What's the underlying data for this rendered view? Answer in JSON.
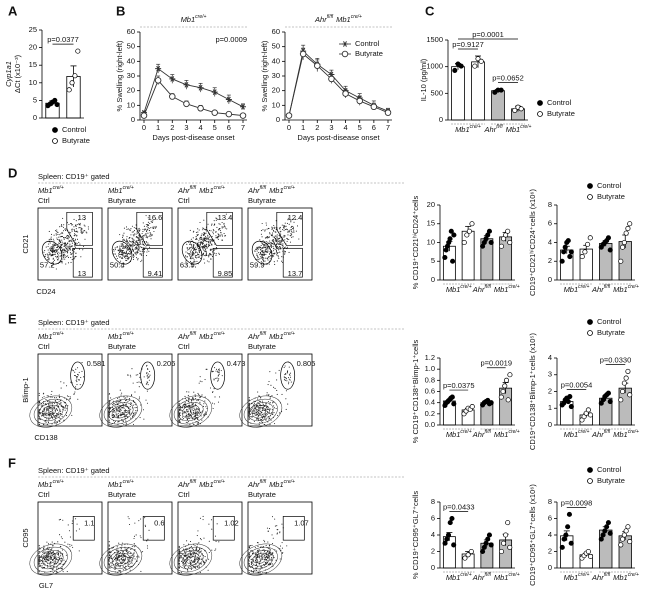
{
  "panel_letters": [
    "A",
    "B",
    "C",
    "D",
    "E",
    "F"
  ],
  "chart_data": [
    {
      "type": "bar",
      "ylabel": [
        "Cyp1a1",
        "ΔCt (x10⁻³)"
      ],
      "ylim": [
        0,
        25
      ],
      "yticks": [
        0,
        5,
        10,
        15,
        20,
        25
      ],
      "values": [
        4.2,
        11.8
      ],
      "errors": [
        0.7,
        3.0
      ],
      "points": [
        [
          3.5,
          4.0,
          4.5,
          5.0,
          3.8
        ],
        [
          8,
          10,
          12,
          19
        ]
      ],
      "bar_colors": [
        "#ffffff",
        "#ffffff"
      ],
      "point_colors": [
        "#000000",
        "#ffffff"
      ],
      "p_values": [
        {
          "text": "p=0.0377",
          "bars": [
            0,
            1
          ]
        }
      ],
      "legend": [
        "Control",
        "Butyrate"
      ],
      "legend_colors": [
        "#000000",
        "#ffffff"
      ]
    },
    {
      "type": "line",
      "title": [
        [
          "Mb1",
          "cre/+"
        ]
      ],
      "xlabel": "Days post-disease onset",
      "ylabel": "% Swelling (right-left)",
      "x": [
        0,
        1,
        2,
        3,
        4,
        5,
        6,
        7
      ],
      "xlim": [
        0,
        7
      ],
      "xticks": [
        0,
        1,
        2,
        3,
        4,
        5,
        6,
        7
      ],
      "ylim": [
        0,
        60
      ],
      "yticks": [
        0,
        10,
        20,
        30,
        40,
        50,
        60
      ],
      "annotation": "p=0.0009",
      "series": [
        {
          "color": "#333333",
          "marker": "star",
          "values": [
            5,
            35,
            28,
            24,
            22,
            19,
            14,
            9
          ],
          "errors": [
            1,
            3,
            3,
            3,
            3,
            3,
            3,
            2
          ]
        },
        {
          "color": "#333333",
          "marker": "circle",
          "values": [
            3,
            27,
            16,
            11,
            8,
            5,
            4,
            3
          ],
          "errors": [
            1,
            3,
            2,
            2,
            2,
            1,
            1,
            1
          ]
        }
      ]
    },
    {
      "type": "line",
      "title": [
        [
          "Ahr",
          "fl/fl"
        ],
        [
          "Mb1",
          "cre/+"
        ]
      ],
      "xlabel": "Days post-disease onset",
      "ylabel": "% Swelling (right-left)",
      "x": [
        0,
        1,
        2,
        3,
        4,
        5,
        6,
        7
      ],
      "xlim": [
        0,
        7
      ],
      "xticks": [
        0,
        1,
        2,
        3,
        4,
        5,
        6,
        7
      ],
      "ylim": [
        0,
        60
      ],
      "yticks": [
        0,
        10,
        20,
        30,
        40,
        50,
        60
      ],
      "legend": true,
      "series": [
        {
          "name": "Control",
          "color": "#333333",
          "marker": "star",
          "values": [
            3,
            47,
            38,
            31,
            20,
            15,
            10,
            6
          ],
          "errors": [
            1,
            4,
            4,
            3,
            3,
            3,
            3,
            2
          ]
        },
        {
          "name": "Butyrate",
          "color": "#333333",
          "marker": "circle",
          "values": [
            3,
            45,
            37,
            28,
            18,
            13,
            9,
            5
          ],
          "errors": [
            1,
            4,
            4,
            3,
            3,
            3,
            2,
            2
          ]
        }
      ]
    },
    {
      "type": "bar",
      "ylabel": "IL-10 (pg/ml)",
      "ylim": [
        0,
        1500
      ],
      "yticks": [
        0,
        500,
        1000,
        1500
      ],
      "values": [
        1000,
        1090,
        550,
        210
      ],
      "errors": [
        60,
        110,
        20,
        50
      ],
      "points": [
        [
          930,
          1050,
          1010
        ],
        [
          1010,
          1150,
          1100
        ],
        [
          520,
          560,
          560
        ],
        [
          180,
          240,
          210
        ]
      ],
      "bar_colors": [
        "#ffffff",
        "#ffffff",
        "#bbbbbb",
        "#bbbbbb"
      ],
      "point_colors": [
        "#000000",
        "#ffffff",
        "#000000",
        "#ffffff"
      ],
      "groups": [
        [
          [
            "Mb1",
            "cre/+"
          ]
        ],
        [
          [
            "Ahr",
            "fl/fl"
          ],
          [
            "Mb1",
            "cre/+"
          ]
        ]
      ],
      "p_values": [
        {
          "text": "p=0.9127",
          "bars": [
            0,
            1
          ]
        },
        {
          "text": "p=0.0652",
          "bars": [
            2,
            3
          ]
        },
        {
          "text": "p=0.0001",
          "bars": [
            0,
            3
          ]
        }
      ],
      "legend": [
        "Control",
        "Butyrate"
      ],
      "legend_colors": [
        "#000000",
        "#ffffff"
      ]
    },
    {
      "type": "bar",
      "ylabel": "% CD19⁺CD21ʰⁱCD24⁺cells",
      "ylim": [
        0,
        20
      ],
      "yticks": [
        0,
        5,
        10,
        15,
        20
      ],
      "values": [
        9,
        13,
        11,
        11.5
      ],
      "errors": [
        1.3,
        1.3,
        0.8,
        1.2
      ],
      "points": [
        [
          6,
          8,
          9,
          10,
          11,
          13,
          5,
          12
        ],
        [
          10,
          12,
          13,
          15
        ],
        [
          9,
          10,
          11,
          12,
          13,
          10
        ],
        [
          9,
          11,
          12,
          13,
          10
        ]
      ],
      "bar_colors": [
        "#ffffff",
        "#ffffff",
        "#bbbbbb",
        "#bbbbbb"
      ],
      "point_colors": [
        "#000000",
        "#ffffff",
        "#000000",
        "#ffffff"
      ],
      "groups": [
        [
          [
            "Mb1",
            "cre/+"
          ]
        ],
        [
          [
            "Ahr",
            "fl/fl"
          ],
          [
            "Mb1",
            "cre/+"
          ]
        ]
      ]
    },
    {
      "type": "bar",
      "ylabel": "CD19⁺CD21ʰⁱCD24⁺cells (x10⁶)",
      "ylim": [
        0,
        8
      ],
      "yticks": [
        0,
        2,
        4,
        6,
        8
      ],
      "values": [
        3.2,
        3.3,
        3.9,
        4.1
      ],
      "errors": [
        0.4,
        0.4,
        0.3,
        0.7
      ],
      "points": [
        [
          2,
          3,
          3.5,
          4,
          4.2,
          2.5,
          3
        ],
        [
          2.5,
          3,
          3.8,
          4.5
        ],
        [
          3.5,
          3.8,
          4,
          4.2,
          4.5,
          3.2
        ],
        [
          2,
          3.5,
          4,
          5,
          5.5,
          6
        ]
      ],
      "bar_colors": [
        "#ffffff",
        "#ffffff",
        "#bbbbbb",
        "#bbbbbb"
      ],
      "point_colors": [
        "#000000",
        "#ffffff",
        "#000000",
        "#ffffff"
      ],
      "groups": [
        [
          [
            "Mb1",
            "cre/+"
          ]
        ],
        [
          [
            "Ahr",
            "fl/fl"
          ],
          [
            "Mb1",
            "cre/+"
          ]
        ]
      ],
      "legend": [
        "Control",
        "Butyrate"
      ],
      "legend_colors": [
        "#000000",
        "#ffffff"
      ]
    },
    {
      "type": "bar",
      "ylabel": "% CD19⁺CD138⁺Blimp-1⁺cells",
      "ylim": [
        0,
        1.2
      ],
      "yticks": [
        {
          "value": 0,
          "label": "0.0"
        },
        0.2,
        0.4,
        0.6,
        0.8,
        {
          "value": 1,
          "label": "1.0"
        },
        1.2
      ],
      "values": [
        0.43,
        0.27,
        0.4,
        0.66
      ],
      "errors": [
        0.03,
        0.03,
        0.02,
        0.1
      ],
      "points": [
        [
          0.35,
          0.4,
          0.42,
          0.45,
          0.48,
          0.5,
          0.38
        ],
        [
          0.2,
          0.25,
          0.3,
          0.28,
          0.33
        ],
        [
          0.36,
          0.4,
          0.42,
          0.44,
          0.38,
          0.4
        ],
        [
          0.5,
          0.6,
          0.7,
          0.8,
          0.45,
          0.9
        ]
      ],
      "bar_colors": [
        "#ffffff",
        "#ffffff",
        "#bbbbbb",
        "#bbbbbb"
      ],
      "point_colors": [
        "#000000",
        "#ffffff",
        "#000000",
        "#ffffff"
      ],
      "groups": [
        [
          [
            "Mb1",
            "cre/+"
          ]
        ],
        [
          [
            "Ahr",
            "fl/fl"
          ],
          [
            "Mb1",
            "cre/+"
          ]
        ]
      ],
      "p_values": [
        {
          "text": "p=0.0375",
          "bars": [
            0,
            1
          ]
        },
        {
          "text": "p=0.0019",
          "bars": [
            2,
            3
          ]
        }
      ]
    },
    {
      "type": "bar",
      "ylabel": "CD19⁺CD138⁺Blimp-1⁺cells (x10⁵)",
      "ylim": [
        0,
        4
      ],
      "yticks": [
        0,
        1,
        2,
        3,
        4
      ],
      "values": [
        1.4,
        0.6,
        1.6,
        2.2
      ],
      "errors": [
        0.1,
        0.1,
        0.15,
        0.3
      ],
      "points": [
        [
          1.2,
          1.3,
          1.5,
          1.6,
          1.4,
          1.7,
          1.1
        ],
        [
          0.3,
          0.5,
          0.7,
          0.9,
          0.6
        ],
        [
          1.3,
          1.5,
          1.7,
          1.8,
          1.9,
          1.4
        ],
        [
          1.5,
          2,
          2.5,
          2.8,
          3.2,
          1.8
        ]
      ],
      "bar_colors": [
        "#ffffff",
        "#ffffff",
        "#bbbbbb",
        "#bbbbbb"
      ],
      "point_colors": [
        "#000000",
        "#ffffff",
        "#000000",
        "#ffffff"
      ],
      "groups": [
        [
          [
            "Mb1",
            "cre/+"
          ]
        ],
        [
          [
            "Ahr",
            "fl/fl"
          ],
          [
            "Mb1",
            "cre/+"
          ]
        ]
      ],
      "p_values": [
        {
          "text": "p=0.0054",
          "bars": [
            0,
            1
          ]
        },
        {
          "text": "p=0.0330",
          "bars": [
            2,
            3
          ]
        }
      ],
      "legend": [
        "Control",
        "Butyrate"
      ],
      "legend_colors": [
        "#000000",
        "#ffffff"
      ]
    },
    {
      "type": "bar",
      "ylabel": "% CD19⁺CD95⁺GL7⁺cells",
      "ylim": [
        0,
        8
      ],
      "yticks": [
        0,
        2,
        4,
        6,
        8
      ],
      "values": [
        3.8,
        1.7,
        3.0,
        3.4
      ],
      "errors": [
        0.5,
        0.3,
        0.4,
        0.7
      ],
      "points": [
        [
          3,
          3.5,
          4,
          5.5,
          6,
          2.8
        ],
        [
          1.2,
          1.6,
          2
        ],
        [
          2,
          2.5,
          3,
          3.5,
          4,
          2.8
        ],
        [
          2,
          3,
          4,
          5.5,
          2.5
        ]
      ],
      "bar_colors": [
        "#ffffff",
        "#ffffff",
        "#bbbbbb",
        "#bbbbbb"
      ],
      "point_colors": [
        "#000000",
        "#ffffff",
        "#000000",
        "#ffffff"
      ],
      "groups": [
        [
          [
            "Mb1",
            "cre/+"
          ]
        ],
        [
          [
            "Ahr",
            "fl/fl"
          ],
          [
            "Mb1",
            "cre/+"
          ]
        ]
      ],
      "p_values": [
        {
          "text": "p=0.0433",
          "bars": [
            0,
            1
          ]
        }
      ]
    },
    {
      "type": "bar",
      "ylabel": "CD19⁺CD95⁺GL7⁺cells (x10⁶)",
      "ylim": [
        0,
        8
      ],
      "yticks": [
        0,
        2,
        4,
        6,
        8
      ],
      "values": [
        3.9,
        1.6,
        4.6,
        3.9
      ],
      "errors": [
        0.6,
        0.2,
        0.4,
        0.5
      ],
      "points": [
        [
          2.5,
          3.5,
          4,
          5,
          6.5,
          3
        ],
        [
          1.2,
          1.5,
          1.8,
          2,
          1.4
        ],
        [
          3.5,
          4,
          4.5,
          5,
          5.5,
          4.2
        ],
        [
          2.8,
          3.5,
          4,
          4.5,
          5,
          3.2
        ]
      ],
      "bar_colors": [
        "#ffffff",
        "#ffffff",
        "#bbbbbb",
        "#bbbbbb"
      ],
      "point_colors": [
        "#000000",
        "#ffffff",
        "#000000",
        "#ffffff"
      ],
      "groups": [
        [
          [
            "Mb1",
            "cre/+"
          ]
        ],
        [
          [
            "Ahr",
            "fl/fl"
          ],
          [
            "Mb1",
            "cre/+"
          ]
        ]
      ],
      "p_values": [
        {
          "text": "p=0.0098",
          "bars": [
            0,
            1
          ]
        }
      ],
      "legend": [
        "Control",
        "Butyrate"
      ],
      "legend_colors": [
        "#000000",
        "#ffffff"
      ]
    }
  ],
  "flow": [
    {
      "header": "Spleen: CD19⁺ gated",
      "x_label": "CD24",
      "y_label": "CD21",
      "gate_style": "cd21",
      "plots": [
        {
          "genotype": [
            [
              "Mb1",
              "cre/+"
            ]
          ],
          "treatment": "Ctrl",
          "gates": [
            "13",
            "57.2",
            "13"
          ]
        },
        {
          "genotype": [
            [
              "Mb1",
              "cre/+"
            ]
          ],
          "treatment": "Butyrate",
          "gates": [
            "16.6",
            "50.4",
            "9.41"
          ]
        },
        {
          "genotype": [
            [
              "Ahr",
              "fl/fl"
            ],
            [
              "Mb1",
              "cre/+"
            ]
          ],
          "treatment": "Ctrl",
          "gates": [
            "13.4",
            "63.5",
            "9.85"
          ]
        },
        {
          "genotype": [
            [
              "Ahr",
              "fl/fl"
            ],
            [
              "Mb1",
              "cre/+"
            ]
          ],
          "treatment": "Butyrate",
          "gates": [
            "12.4",
            "59.9",
            "13.7"
          ]
        }
      ]
    },
    {
      "header": "Spleen: CD19⁺ gated",
      "x_label": "CD138",
      "y_label": "Blimp-1",
      "gate_style": "ellipse",
      "plots": [
        {
          "genotype": [
            [
              "Mb1",
              "cre/+"
            ]
          ],
          "treatment": "Ctrl",
          "gates": [
            "0.581"
          ]
        },
        {
          "genotype": [
            [
              "Mb1",
              "cre/+"
            ]
          ],
          "treatment": "Butyrate",
          "gates": [
            "0.206"
          ]
        },
        {
          "genotype": [
            [
              "Ahr",
              "fl/fl"
            ],
            [
              "Mb1",
              "cre/+"
            ]
          ],
          "treatment": "Ctrl",
          "gates": [
            "0.473"
          ]
        },
        {
          "genotype": [
            [
              "Ahr",
              "fl/fl"
            ],
            [
              "Mb1",
              "cre/+"
            ]
          ],
          "treatment": "Butyrate",
          "gates": [
            "0.805"
          ]
        }
      ]
    },
    {
      "header": "Spleen: CD19⁺ gated",
      "x_label": "GL7",
      "y_label": "CD95",
      "gate_style": "rect",
      "plots": [
        {
          "genotype": [
            [
              "Mb1",
              "cre/+"
            ]
          ],
          "treatment": "Ctrl",
          "gates": [
            "1.1"
          ]
        },
        {
          "genotype": [
            [
              "Mb1",
              "cre/+"
            ]
          ],
          "treatment": "Butyrate",
          "gates": [
            "0.6"
          ]
        },
        {
          "genotype": [
            [
              "Ahr",
              "fl/fl"
            ],
            [
              "Mb1",
              "cre/+"
            ]
          ],
          "treatment": "Ctrl",
          "gates": [
            "1.02"
          ]
        },
        {
          "genotype": [
            [
              "Ahr",
              "fl/fl"
            ],
            [
              "Mb1",
              "cre/+"
            ]
          ],
          "treatment": "Butyrate",
          "gates": [
            "1.07"
          ]
        }
      ]
    }
  ]
}
